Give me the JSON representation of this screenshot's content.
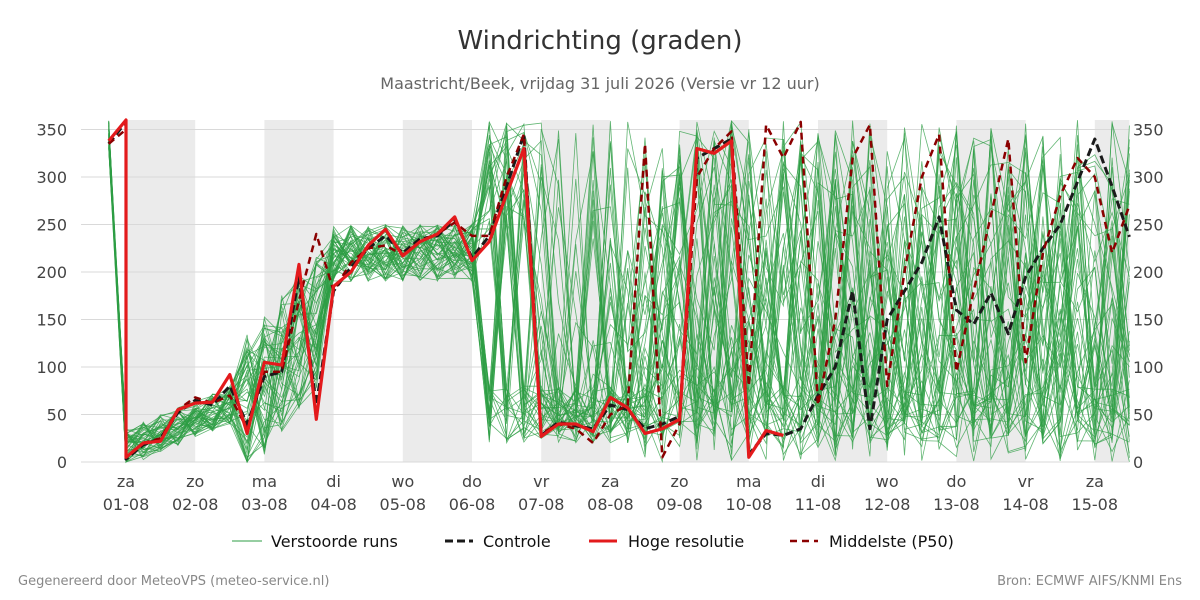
{
  "header": {
    "title": "Windrichting (graden)",
    "subtitle": "Maastricht/Beek, vrijdag 31 juli 2026 (Versie vr 12 uur)"
  },
  "footer": {
    "left": "Gegenereerd door MeteoVPS (meteo-service.nl)",
    "right": "Bron: ECMWF AIFS/KNMI Ens"
  },
  "legend": {
    "perturbed": "Verstoorde runs",
    "control": "Controle",
    "hires": "Hoge resolutie",
    "median": "Middelste (P50)"
  },
  "colors": {
    "perturbed": "#2e9e44",
    "control": "#1a1a1a",
    "hires": "#e31a1c",
    "median": "#8b0000",
    "weekend_band": "#ebebeb",
    "grid": "#d9d9d9"
  },
  "chart_data": {
    "type": "line",
    "title": "Windrichting (graden)",
    "subtitle": "Maastricht/Beek, vrijdag 31 juli 2026 (Versie vr 12 uur)",
    "xlabel": "",
    "ylabel": "",
    "ylim": [
      0,
      360
    ],
    "y_ticks": [
      0,
      50,
      100,
      150,
      200,
      250,
      300,
      350
    ],
    "x_unit": "day (0 = 01-08 00:00)",
    "xlim": [
      -0.65,
      14.5
    ],
    "x_ticks": [
      {
        "x": 0,
        "day": "za",
        "date": "01-08"
      },
      {
        "x": 1,
        "day": "zo",
        "date": "02-08"
      },
      {
        "x": 2,
        "day": "ma",
        "date": "03-08"
      },
      {
        "x": 3,
        "day": "di",
        "date": "04-08"
      },
      {
        "x": 4,
        "day": "wo",
        "date": "05-08"
      },
      {
        "x": 5,
        "day": "do",
        "date": "06-08"
      },
      {
        "x": 6,
        "day": "vr",
        "date": "07-08"
      },
      {
        "x": 7,
        "day": "za",
        "date": "08-08"
      },
      {
        "x": 8,
        "day": "zo",
        "date": "09-08"
      },
      {
        "x": 9,
        "day": "ma",
        "date": "10-08"
      },
      {
        "x": 10,
        "day": "di",
        "date": "11-08"
      },
      {
        "x": 11,
        "day": "wo",
        "date": "12-08"
      },
      {
        "x": 12,
        "day": "do",
        "date": "13-08"
      },
      {
        "x": 13,
        "day": "vr",
        "date": "14-08"
      },
      {
        "x": 14,
        "day": "za",
        "date": "15-08"
      }
    ],
    "shaded_intervals": [
      [
        0,
        1
      ],
      [
        2,
        3
      ],
      [
        4,
        5
      ],
      [
        6,
        7
      ],
      [
        8,
        9
      ],
      [
        10,
        11
      ],
      [
        12,
        13
      ],
      [
        14,
        14.5
      ]
    ],
    "grid": true,
    "legend_position": "bottom",
    "series": [
      {
        "name": "Hoge resolutie",
        "style": "solid",
        "points": [
          [
            -0.25,
            338
          ],
          [
            0,
            360
          ],
          [
            0,
            5
          ],
          [
            0.25,
            20
          ],
          [
            0.5,
            22
          ],
          [
            0.75,
            55
          ],
          [
            1,
            62
          ],
          [
            1.25,
            63
          ],
          [
            1.5,
            92
          ],
          [
            1.75,
            30
          ],
          [
            2,
            105
          ],
          [
            2.25,
            102
          ],
          [
            2.5,
            208
          ],
          [
            2.75,
            45
          ],
          [
            3,
            185
          ],
          [
            3.25,
            200
          ],
          [
            3.5,
            228
          ],
          [
            3.75,
            245
          ],
          [
            4,
            217
          ],
          [
            4.25,
            232
          ],
          [
            4.5,
            240
          ],
          [
            4.75,
            258
          ],
          [
            5,
            212
          ],
          [
            5.25,
            232
          ],
          [
            5.5,
            282
          ],
          [
            5.75,
            330
          ],
          [
            6,
            27
          ],
          [
            6.25,
            40
          ],
          [
            6.5,
            40
          ],
          [
            6.75,
            32
          ],
          [
            7,
            68
          ],
          [
            7.25,
            57
          ],
          [
            7.5,
            30
          ],
          [
            7.75,
            35
          ],
          [
            8,
            45
          ],
          [
            8.25,
            330
          ],
          [
            8.5,
            325
          ],
          [
            8.75,
            338
          ],
          [
            9,
            5
          ],
          [
            9.25,
            33
          ],
          [
            9.5,
            28
          ]
        ]
      },
      {
        "name": "Controle",
        "style": "dashed",
        "points": [
          [
            -0.25,
            335
          ],
          [
            0,
            358
          ],
          [
            0,
            3
          ],
          [
            0.25,
            18
          ],
          [
            0.5,
            25
          ],
          [
            0.75,
            52
          ],
          [
            1,
            65
          ],
          [
            1.25,
            60
          ],
          [
            1.5,
            80
          ],
          [
            1.75,
            40
          ],
          [
            2,
            90
          ],
          [
            2.25,
            95
          ],
          [
            2.5,
            195
          ],
          [
            2.75,
            60
          ],
          [
            3,
            180
          ],
          [
            3.25,
            205
          ],
          [
            3.5,
            225
          ],
          [
            3.75,
            238
          ],
          [
            4,
            220
          ],
          [
            4.25,
            235
          ],
          [
            4.5,
            238
          ],
          [
            4.75,
            255
          ],
          [
            5,
            215
          ],
          [
            5.25,
            238
          ],
          [
            5.5,
            290
          ],
          [
            5.75,
            345
          ],
          [
            6,
            28
          ],
          [
            6.25,
            42
          ],
          [
            6.5,
            38
          ],
          [
            6.75,
            35
          ],
          [
            7,
            60
          ],
          [
            7.25,
            55
          ],
          [
            7.5,
            35
          ],
          [
            7.75,
            40
          ],
          [
            8,
            48
          ],
          [
            8.25,
            320
          ],
          [
            8.5,
            330
          ],
          [
            8.75,
            340
          ],
          [
            9,
            8
          ],
          [
            9.25,
            30
          ],
          [
            9.5,
            28
          ],
          [
            9.75,
            35
          ],
          [
            10,
            70
          ],
          [
            10.25,
            100
          ],
          [
            10.5,
            180
          ],
          [
            10.75,
            35
          ],
          [
            11,
            150
          ],
          [
            11.25,
            180
          ],
          [
            11.5,
            210
          ],
          [
            11.75,
            258
          ],
          [
            12,
            160
          ],
          [
            12.25,
            145
          ],
          [
            12.5,
            178
          ],
          [
            12.75,
            135
          ],
          [
            13,
            195
          ],
          [
            13.25,
            225
          ],
          [
            13.5,
            250
          ],
          [
            13.75,
            295
          ],
          [
            14,
            340
          ],
          [
            14.25,
            290
          ],
          [
            14.5,
            237
          ]
        ]
      },
      {
        "name": "Middelste (P50)",
        "style": "dashed",
        "points": [
          [
            -0.25,
            335
          ],
          [
            0,
            350
          ],
          [
            0,
            5
          ],
          [
            0.25,
            20
          ],
          [
            0.5,
            25
          ],
          [
            0.75,
            55
          ],
          [
            1,
            68
          ],
          [
            1.25,
            62
          ],
          [
            1.5,
            70
          ],
          [
            1.75,
            35
          ],
          [
            2,
            95
          ],
          [
            2.25,
            95
          ],
          [
            2.5,
            170
          ],
          [
            2.75,
            240
          ],
          [
            3,
            180
          ],
          [
            3.25,
            210
          ],
          [
            3.5,
            225
          ],
          [
            3.75,
            228
          ],
          [
            4,
            218
          ],
          [
            4.25,
            232
          ],
          [
            4.5,
            240
          ],
          [
            4.75,
            252
          ],
          [
            5,
            238
          ],
          [
            5.25,
            238
          ],
          [
            5.5,
            300
          ],
          [
            5.75,
            345
          ],
          [
            6,
            30
          ],
          [
            6.25,
            40
          ],
          [
            6.5,
            35
          ],
          [
            6.75,
            20
          ],
          [
            7,
            50
          ],
          [
            7.25,
            60
          ],
          [
            7.5,
            335
          ],
          [
            7.75,
            5
          ],
          [
            8,
            40
          ],
          [
            8.25,
            300
          ],
          [
            8.5,
            330
          ],
          [
            8.75,
            348
          ],
          [
            9,
            80
          ],
          [
            9.25,
            355
          ],
          [
            9.5,
            320
          ],
          [
            9.75,
            358
          ],
          [
            10,
            60
          ],
          [
            10.25,
            150
          ],
          [
            10.5,
            320
          ],
          [
            10.75,
            355
          ],
          [
            11,
            80
          ],
          [
            11.25,
            200
          ],
          [
            11.5,
            300
          ],
          [
            11.75,
            345
          ],
          [
            12,
            95
          ],
          [
            12.25,
            180
          ],
          [
            12.5,
            260
          ],
          [
            12.75,
            340
          ],
          [
            13,
            105
          ],
          [
            13.25,
            220
          ],
          [
            13.5,
            280
          ],
          [
            13.75,
            320
          ],
          [
            14,
            300
          ],
          [
            14.25,
            220
          ],
          [
            14.5,
            270
          ]
        ]
      }
    ]
  }
}
